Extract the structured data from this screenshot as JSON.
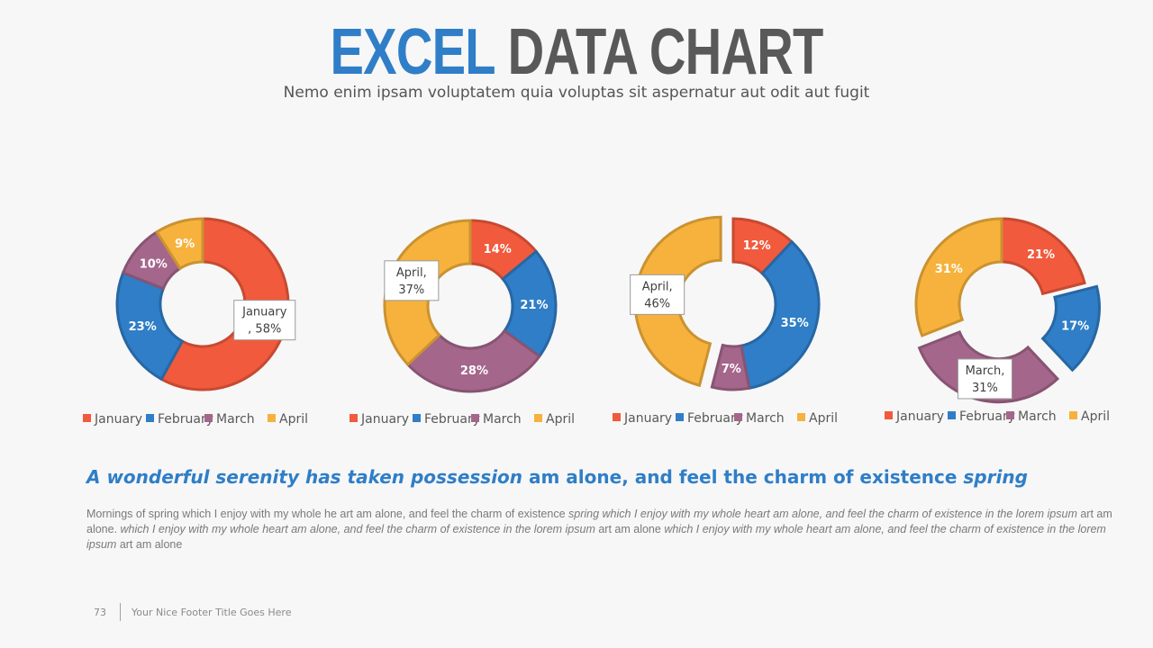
{
  "header": {
    "title_part1": "EXCEL",
    "title_part2": "DATA CHART",
    "subtitle": "Nemo enim ipsam voluptatem quia voluptas sit aspernatur aut odit aut fugit"
  },
  "colors": {
    "January": "#f15a3c",
    "February": "#2f7ec7",
    "March": "#a5668b",
    "April": "#f6b23c",
    "title_accent": "#2f7ec7"
  },
  "chart_data": [
    {
      "type": "pie",
      "variant": "doughnut",
      "categories": [
        "January",
        "February",
        "March",
        "April"
      ],
      "values": [
        58,
        23,
        10,
        9
      ],
      "labels": [
        "January\n, 58%",
        "23%",
        "10%",
        "9%"
      ],
      "boxed_label": [
        true,
        false,
        false,
        false
      ],
      "exploded": [
        false,
        false,
        false,
        false
      ],
      "legend": "bottom"
    },
    {
      "type": "pie",
      "variant": "doughnut",
      "categories": [
        "January",
        "February",
        "March",
        "April"
      ],
      "values": [
        14,
        21,
        28,
        37
      ],
      "labels": [
        "14%",
        "21%",
        "28%",
        "April,\n37%"
      ],
      "boxed_label": [
        false,
        false,
        false,
        true
      ],
      "exploded": [
        false,
        false,
        false,
        false
      ],
      "legend": "bottom"
    },
    {
      "type": "pie",
      "variant": "doughnut",
      "categories": [
        "January",
        "February",
        "March",
        "April"
      ],
      "values": [
        12,
        35,
        7,
        46
      ],
      "labels": [
        "12%",
        "35%",
        "7%",
        "April,\n46%"
      ],
      "boxed_label": [
        false,
        false,
        false,
        true
      ],
      "exploded": [
        false,
        false,
        false,
        true
      ],
      "legend": "bottom"
    },
    {
      "type": "pie",
      "variant": "doughnut",
      "categories": [
        "January",
        "February",
        "March",
        "April"
      ],
      "values": [
        21,
        17,
        31,
        31
      ],
      "labels": [
        "21%",
        "17%",
        "March,\n31%",
        "31%"
      ],
      "boxed_label": [
        false,
        false,
        true,
        false
      ],
      "exploded": [
        false,
        true,
        true,
        false
      ],
      "legend": "bottom"
    }
  ],
  "content": {
    "headline_italic": "A wonderful serenity has taken possession",
    "headline_normal": " am alone, and feel the charm of existence ",
    "headline_italic2": "spring",
    "body_1": "Mornings of spring which I enjoy with my whole he art am alone, and feel the charm of existence ",
    "body_2": "spring which I enjoy with my whole heart am alone, and feel the charm of existence in the lorem ipsum",
    "body_3": " art am alone. ",
    "body_4": "which I enjoy with my whole heart am alone, and feel the charm of existence in the lorem ipsum",
    "body_5": " art am alone ",
    "body_6": "which I enjoy with my whole heart am alone, and feel the charm of existence in the lorem ipsum",
    "body_7": " art am alone"
  },
  "footer": {
    "page_number": "73",
    "title": "Your Nice Footer Title Goes Here"
  }
}
